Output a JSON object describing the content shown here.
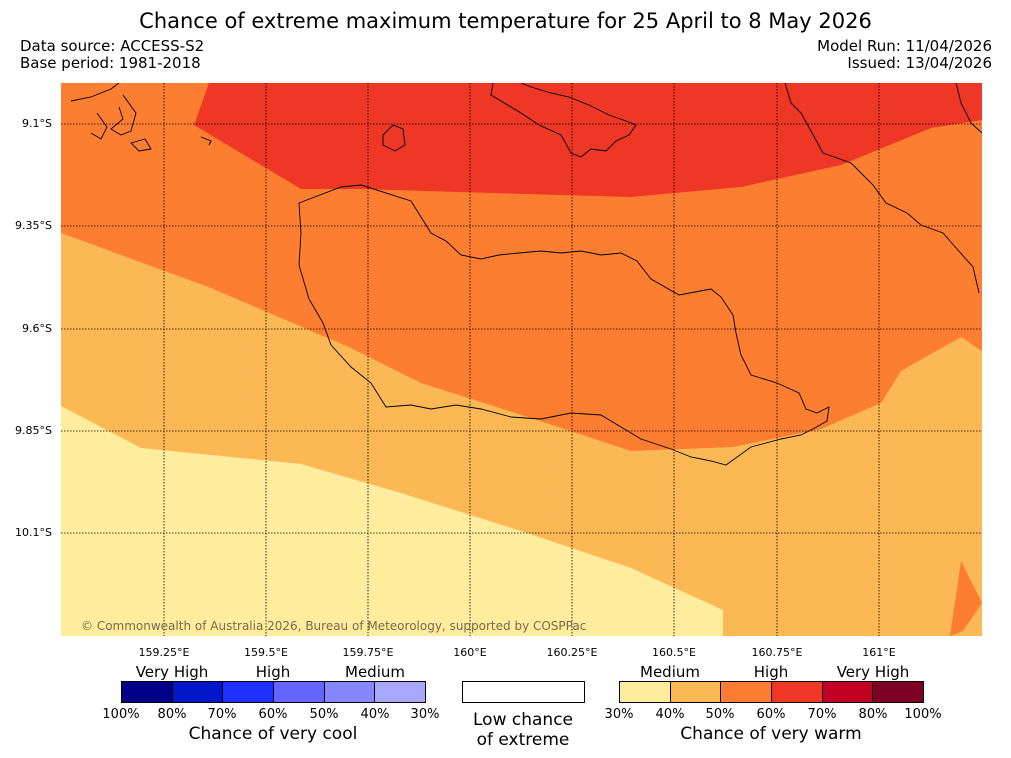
{
  "title": "Chance of extreme maximum temperature for 25 April to 8 May 2026",
  "data_source": "Data source: ACCESS-S2",
  "base_period": "Base period: 1981-2018",
  "model_run": "Model Run: 11/04/2026",
  "issued": "Issued: 13/04/2026",
  "copyright": "© Commonwealth of Australia 2026, Bureau of Meteorology, supported by COSPPac",
  "lat_labels": [
    "9.1°S",
    "9.35°S",
    "9.6°S",
    "9.85°S",
    "10.1°S"
  ],
  "lon_labels": [
    "159.25°E",
    "159.5°E",
    "159.75°E",
    "160°E",
    "160.25°E",
    "160.5°E",
    "160.75°E",
    "161°E"
  ],
  "cool_legend": {
    "categories": [
      "Very High",
      "High",
      "Medium"
    ],
    "percents": [
      "100%",
      "80%",
      "70%",
      "60%",
      "50%",
      "40%",
      "30%"
    ],
    "colors": [
      "#000088",
      "#0018c8",
      "#1e30ff",
      "#6464ff",
      "#8686ff",
      "#a8a8ff"
    ],
    "caption": "Chance of very cool"
  },
  "neutral_legend": {
    "line1": "Low chance",
    "line2": "of extreme"
  },
  "warm_legend": {
    "categories": [
      "Medium",
      "High",
      "Very High"
    ],
    "percents": [
      "30%",
      "40%",
      "50%",
      "60%",
      "70%",
      "80%",
      "100%"
    ],
    "colors": [
      "#ffec9c",
      "#fcb855",
      "#fd7e30",
      "#ee3725",
      "#c20023",
      "#7f0025"
    ],
    "caption": "Chance of very warm"
  },
  "map_colors": {
    "c30_40": "#ffec9c",
    "c40_50": "#fcb855",
    "c50_60": "#fd7e30",
    "c60_70": "#ee3725"
  }
}
